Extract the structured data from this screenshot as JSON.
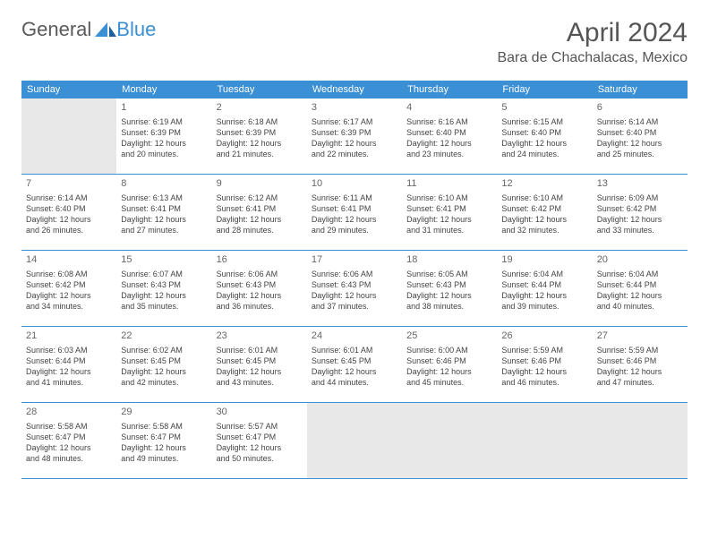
{
  "brand": {
    "word1": "General",
    "word2": "Blue"
  },
  "header": {
    "title": "April 2024",
    "location": "Bara de Chachalacas, Mexico"
  },
  "colors": {
    "header_bar": "#3b8fd4",
    "blank_bg": "#e8e8e8",
    "text": "#444444",
    "title": "#555555"
  },
  "weekdays": [
    "Sunday",
    "Monday",
    "Tuesday",
    "Wednesday",
    "Thursday",
    "Friday",
    "Saturday"
  ],
  "weeks": [
    [
      {
        "blank": true
      },
      {
        "n": "1",
        "sr": "Sunrise: 6:19 AM",
        "ss": "Sunset: 6:39 PM",
        "dl1": "Daylight: 12 hours",
        "dl2": "and 20 minutes."
      },
      {
        "n": "2",
        "sr": "Sunrise: 6:18 AM",
        "ss": "Sunset: 6:39 PM",
        "dl1": "Daylight: 12 hours",
        "dl2": "and 21 minutes."
      },
      {
        "n": "3",
        "sr": "Sunrise: 6:17 AM",
        "ss": "Sunset: 6:39 PM",
        "dl1": "Daylight: 12 hours",
        "dl2": "and 22 minutes."
      },
      {
        "n": "4",
        "sr": "Sunrise: 6:16 AM",
        "ss": "Sunset: 6:40 PM",
        "dl1": "Daylight: 12 hours",
        "dl2": "and 23 minutes."
      },
      {
        "n": "5",
        "sr": "Sunrise: 6:15 AM",
        "ss": "Sunset: 6:40 PM",
        "dl1": "Daylight: 12 hours",
        "dl2": "and 24 minutes."
      },
      {
        "n": "6",
        "sr": "Sunrise: 6:14 AM",
        "ss": "Sunset: 6:40 PM",
        "dl1": "Daylight: 12 hours",
        "dl2": "and 25 minutes."
      }
    ],
    [
      {
        "n": "7",
        "sr": "Sunrise: 6:14 AM",
        "ss": "Sunset: 6:40 PM",
        "dl1": "Daylight: 12 hours",
        "dl2": "and 26 minutes."
      },
      {
        "n": "8",
        "sr": "Sunrise: 6:13 AM",
        "ss": "Sunset: 6:41 PM",
        "dl1": "Daylight: 12 hours",
        "dl2": "and 27 minutes."
      },
      {
        "n": "9",
        "sr": "Sunrise: 6:12 AM",
        "ss": "Sunset: 6:41 PM",
        "dl1": "Daylight: 12 hours",
        "dl2": "and 28 minutes."
      },
      {
        "n": "10",
        "sr": "Sunrise: 6:11 AM",
        "ss": "Sunset: 6:41 PM",
        "dl1": "Daylight: 12 hours",
        "dl2": "and 29 minutes."
      },
      {
        "n": "11",
        "sr": "Sunrise: 6:10 AM",
        "ss": "Sunset: 6:41 PM",
        "dl1": "Daylight: 12 hours",
        "dl2": "and 31 minutes."
      },
      {
        "n": "12",
        "sr": "Sunrise: 6:10 AM",
        "ss": "Sunset: 6:42 PM",
        "dl1": "Daylight: 12 hours",
        "dl2": "and 32 minutes."
      },
      {
        "n": "13",
        "sr": "Sunrise: 6:09 AM",
        "ss": "Sunset: 6:42 PM",
        "dl1": "Daylight: 12 hours",
        "dl2": "and 33 minutes."
      }
    ],
    [
      {
        "n": "14",
        "sr": "Sunrise: 6:08 AM",
        "ss": "Sunset: 6:42 PM",
        "dl1": "Daylight: 12 hours",
        "dl2": "and 34 minutes."
      },
      {
        "n": "15",
        "sr": "Sunrise: 6:07 AM",
        "ss": "Sunset: 6:43 PM",
        "dl1": "Daylight: 12 hours",
        "dl2": "and 35 minutes."
      },
      {
        "n": "16",
        "sr": "Sunrise: 6:06 AM",
        "ss": "Sunset: 6:43 PM",
        "dl1": "Daylight: 12 hours",
        "dl2": "and 36 minutes."
      },
      {
        "n": "17",
        "sr": "Sunrise: 6:06 AM",
        "ss": "Sunset: 6:43 PM",
        "dl1": "Daylight: 12 hours",
        "dl2": "and 37 minutes."
      },
      {
        "n": "18",
        "sr": "Sunrise: 6:05 AM",
        "ss": "Sunset: 6:43 PM",
        "dl1": "Daylight: 12 hours",
        "dl2": "and 38 minutes."
      },
      {
        "n": "19",
        "sr": "Sunrise: 6:04 AM",
        "ss": "Sunset: 6:44 PM",
        "dl1": "Daylight: 12 hours",
        "dl2": "and 39 minutes."
      },
      {
        "n": "20",
        "sr": "Sunrise: 6:04 AM",
        "ss": "Sunset: 6:44 PM",
        "dl1": "Daylight: 12 hours",
        "dl2": "and 40 minutes."
      }
    ],
    [
      {
        "n": "21",
        "sr": "Sunrise: 6:03 AM",
        "ss": "Sunset: 6:44 PM",
        "dl1": "Daylight: 12 hours",
        "dl2": "and 41 minutes."
      },
      {
        "n": "22",
        "sr": "Sunrise: 6:02 AM",
        "ss": "Sunset: 6:45 PM",
        "dl1": "Daylight: 12 hours",
        "dl2": "and 42 minutes."
      },
      {
        "n": "23",
        "sr": "Sunrise: 6:01 AM",
        "ss": "Sunset: 6:45 PM",
        "dl1": "Daylight: 12 hours",
        "dl2": "and 43 minutes."
      },
      {
        "n": "24",
        "sr": "Sunrise: 6:01 AM",
        "ss": "Sunset: 6:45 PM",
        "dl1": "Daylight: 12 hours",
        "dl2": "and 44 minutes."
      },
      {
        "n": "25",
        "sr": "Sunrise: 6:00 AM",
        "ss": "Sunset: 6:46 PM",
        "dl1": "Daylight: 12 hours",
        "dl2": "and 45 minutes."
      },
      {
        "n": "26",
        "sr": "Sunrise: 5:59 AM",
        "ss": "Sunset: 6:46 PM",
        "dl1": "Daylight: 12 hours",
        "dl2": "and 46 minutes."
      },
      {
        "n": "27",
        "sr": "Sunrise: 5:59 AM",
        "ss": "Sunset: 6:46 PM",
        "dl1": "Daylight: 12 hours",
        "dl2": "and 47 minutes."
      }
    ],
    [
      {
        "n": "28",
        "sr": "Sunrise: 5:58 AM",
        "ss": "Sunset: 6:47 PM",
        "dl1": "Daylight: 12 hours",
        "dl2": "and 48 minutes."
      },
      {
        "n": "29",
        "sr": "Sunrise: 5:58 AM",
        "ss": "Sunset: 6:47 PM",
        "dl1": "Daylight: 12 hours",
        "dl2": "and 49 minutes."
      },
      {
        "n": "30",
        "sr": "Sunrise: 5:57 AM",
        "ss": "Sunset: 6:47 PM",
        "dl1": "Daylight: 12 hours",
        "dl2": "and 50 minutes."
      },
      {
        "blank": true
      },
      {
        "blank": true
      },
      {
        "blank": true
      },
      {
        "blank": true
      }
    ]
  ]
}
